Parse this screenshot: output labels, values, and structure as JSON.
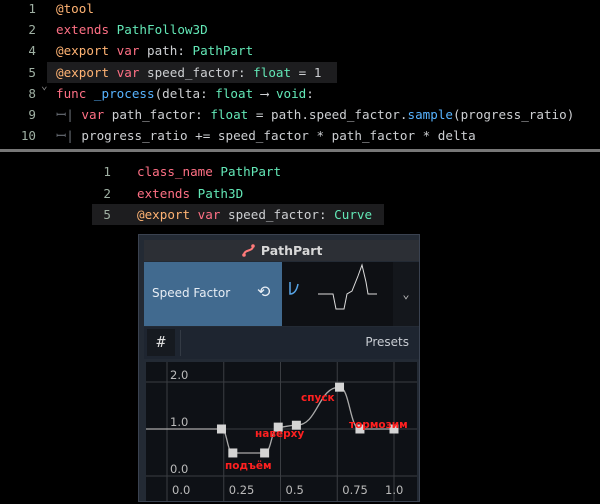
{
  "editor1": {
    "lines": [
      {
        "n": "1",
        "parts": [
          [
            "an",
            "@tool"
          ]
        ]
      },
      {
        "n": "2",
        "parts": [
          [
            "kw",
            "extends"
          ],
          [
            "",
            ""
          ],
          [
            "ty",
            " PathFollow3D"
          ]
        ]
      },
      {
        "n": "4",
        "parts": [
          [
            "an",
            "@export"
          ],
          [
            "kw",
            " var"
          ],
          [
            "",
            " path: "
          ],
          [
            "ty",
            "PathPart"
          ]
        ]
      },
      {
        "n": "5",
        "parts": [
          [
            "an",
            "@export"
          ],
          [
            "kw",
            " var"
          ],
          [
            "",
            " speed_factor: "
          ],
          [
            "ty",
            "float"
          ],
          [
            "",
            " = 1"
          ]
        ]
      },
      {
        "n": "8",
        "parts": [
          [
            "kw",
            "func"
          ],
          [
            "fn",
            " _process"
          ],
          [
            "",
            "(delta: "
          ],
          [
            "ty",
            "float"
          ],
          [
            "",
            " ⟶ "
          ],
          [
            "ty",
            "void"
          ],
          [
            "",
            ":"
          ]
        ]
      },
      {
        "n": "9",
        "parts": [
          [
            "tab",
            "ꟷ| "
          ],
          [
            "kw",
            "var"
          ],
          [
            "",
            " path_factor: "
          ],
          [
            "ty",
            "float"
          ],
          [
            "",
            " = path.speed_factor."
          ],
          [
            "fn",
            "sample"
          ],
          [
            "",
            "(progress_ratio)"
          ]
        ]
      },
      {
        "n": "10",
        "parts": [
          [
            "tab",
            "ꟷ| "
          ],
          [
            "",
            "progress_ratio += speed_factor * path_factor * delta"
          ]
        ]
      }
    ]
  },
  "editor2": {
    "lines": [
      {
        "n": "1",
        "parts": [
          [
            "kw",
            "class_name"
          ],
          [
            "ty",
            " PathPart"
          ]
        ]
      },
      {
        "n": "2",
        "parts": [
          [
            "kw",
            "extends"
          ],
          [
            "ty",
            " Path3D"
          ]
        ]
      },
      {
        "n": "5",
        "parts": [
          [
            "an",
            "@export"
          ],
          [
            "kw",
            " var"
          ],
          [
            "",
            " speed_factor: "
          ],
          [
            "ty",
            "Curve"
          ]
        ]
      }
    ]
  },
  "inspector": {
    "title": "PathPart",
    "property": "Speed Factor",
    "presets_label": "Presets",
    "icons": [
      "path-icon",
      "reset-icon",
      "curve-icon",
      "chevron-down-icon",
      "snap-grid-icon"
    ]
  },
  "chart_data": {
    "type": "line",
    "x": [
      0.24,
      0.29,
      0.43,
      0.49,
      0.57,
      0.76,
      0.85,
      1.0
    ],
    "y": [
      1.0,
      0.49,
      0.49,
      1.04,
      1.08,
      1.89,
      1.0,
      1.0
    ],
    "xlim": [
      0,
      1
    ],
    "ylim": [
      0,
      2
    ],
    "xticks": [
      "0.0",
      "0.25",
      "0.5",
      "0.75",
      "1.0"
    ],
    "yticks": [
      "0.0",
      "1.0",
      "2.0"
    ],
    "grid": true,
    "annotations": [
      "подъём",
      "наверху",
      "спуск",
      "тормозим"
    ],
    "annotation_color": "#ff2020"
  }
}
